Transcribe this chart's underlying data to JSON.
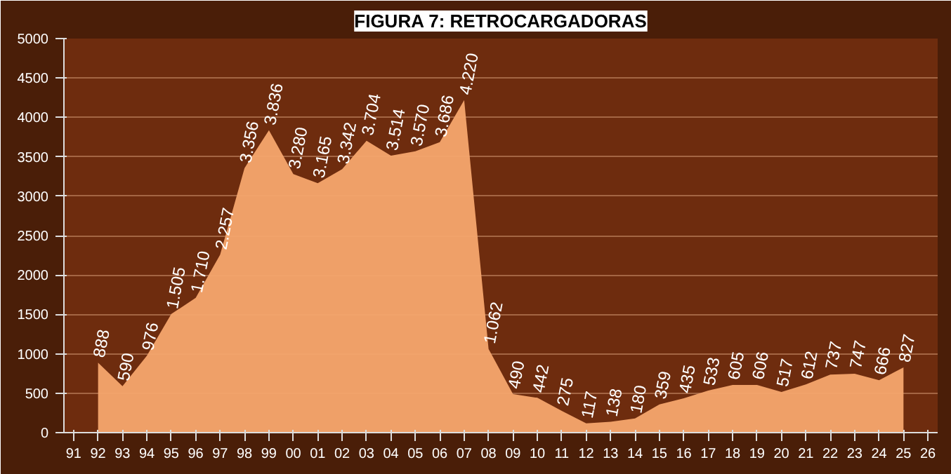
{
  "chart_data": {
    "type": "area",
    "title": "FIGURA 7: RETROCARGADORAS",
    "categories": [
      "91",
      "92",
      "93",
      "94",
      "95",
      "96",
      "97",
      "98",
      "99",
      "00",
      "01",
      "02",
      "03",
      "04",
      "05",
      "06",
      "07",
      "08",
      "09",
      "10",
      "11",
      "12",
      "13",
      "14",
      "15",
      "16",
      "17",
      "18",
      "19",
      "20",
      "21",
      "22",
      "23",
      "24",
      "25",
      "26"
    ],
    "values": [
      null,
      888,
      590,
      976,
      1505,
      1710,
      2257,
      3356,
      3836,
      3280,
      3165,
      3342,
      3704,
      3514,
      3570,
      3686,
      4220,
      1062,
      490,
      442,
      275,
      117,
      138,
      180,
      359,
      435,
      533,
      605,
      606,
      517,
      612,
      737,
      747,
      666,
      827,
      null
    ],
    "value_labels": [
      null,
      "888",
      "590",
      "976",
      "1.505",
      "1.710",
      "2.257",
      "3.356",
      "3.836",
      "3.280",
      "3.165",
      "3.342",
      "3.704",
      "3.514",
      "3.570",
      "3.686",
      "4.220",
      "1.062",
      "490",
      "442",
      "275",
      "117",
      "138",
      "180",
      "359",
      "435",
      "533",
      "605",
      "606",
      "517",
      "612",
      "737",
      "747",
      "666",
      "827",
      null
    ],
    "color": "#f5a66e",
    "ylim": [
      0,
      5000
    ],
    "yticks": [
      0,
      500,
      1000,
      1500,
      2000,
      2500,
      3000,
      3500,
      4000,
      4500,
      5000
    ],
    "grid": "y"
  }
}
